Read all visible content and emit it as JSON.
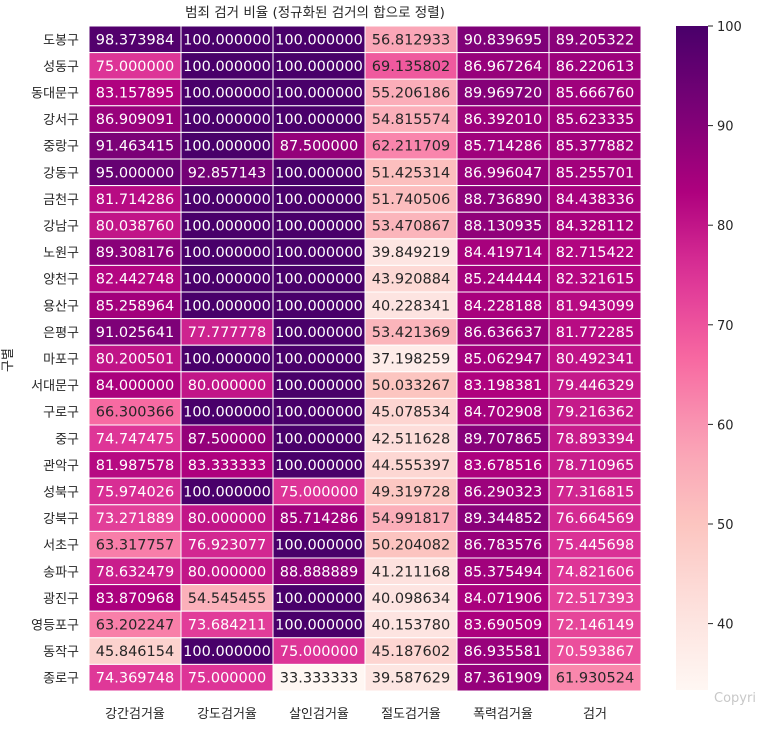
{
  "chart_data": {
    "type": "heatmap",
    "title": "범죄 검거 비율 (정규화된 검거의 합으로 정렬)",
    "ylabel": "구별",
    "xlabel": "",
    "columns": [
      "강간검거율",
      "강도검거율",
      "살인검거율",
      "절도검거율",
      "폭력검거율",
      "검거"
    ],
    "rows": [
      "도봉구",
      "성동구",
      "동대문구",
      "강서구",
      "중랑구",
      "강동구",
      "금천구",
      "강남구",
      "노원구",
      "양천구",
      "용산구",
      "은평구",
      "마포구",
      "서대문구",
      "구로구",
      "중구",
      "관악구",
      "성북구",
      "강북구",
      "서초구",
      "송파구",
      "광진구",
      "영등포구",
      "동작구",
      "종로구"
    ],
    "values": [
      [
        98.373984,
        100.0,
        100.0,
        56.812933,
        90.839695,
        89.205322
      ],
      [
        75.0,
        100.0,
        100.0,
        69.135802,
        86.967264,
        86.220613
      ],
      [
        83.157895,
        100.0,
        100.0,
        55.206186,
        89.96972,
        85.66676
      ],
      [
        86.909091,
        100.0,
        100.0,
        54.815574,
        86.39201,
        85.623335
      ],
      [
        91.463415,
        100.0,
        87.5,
        62.211709,
        85.714286,
        85.377882
      ],
      [
        95.0,
        92.857143,
        100.0,
        51.425314,
        86.996047,
        85.255701
      ],
      [
        81.714286,
        100.0,
        100.0,
        51.740506,
        88.73689,
        84.438336
      ],
      [
        80.03876,
        100.0,
        100.0,
        53.470867,
        88.130935,
        84.328112
      ],
      [
        89.308176,
        100.0,
        100.0,
        39.849219,
        84.419714,
        82.715422
      ],
      [
        82.442748,
        100.0,
        100.0,
        43.920884,
        85.244444,
        82.321615
      ],
      [
        85.258964,
        100.0,
        100.0,
        40.228341,
        84.228188,
        81.943099
      ],
      [
        91.025641,
        77.777778,
        100.0,
        53.421369,
        86.636637,
        81.772285
      ],
      [
        80.200501,
        100.0,
        100.0,
        37.198259,
        85.062947,
        80.492341
      ],
      [
        84.0,
        80.0,
        100.0,
        50.033267,
        83.198381,
        79.446329
      ],
      [
        66.300366,
        100.0,
        100.0,
        45.078534,
        84.702908,
        79.216362
      ],
      [
        74.747475,
        87.5,
        100.0,
        42.511628,
        89.707865,
        78.893394
      ],
      [
        81.987578,
        83.333333,
        100.0,
        44.555397,
        83.678516,
        78.710965
      ],
      [
        75.974026,
        100.0,
        75.0,
        49.319728,
        86.290323,
        77.316815
      ],
      [
        73.271889,
        80.0,
        85.714286,
        54.991817,
        89.344852,
        76.664569
      ],
      [
        63.317757,
        76.923077,
        100.0,
        50.204082,
        86.783576,
        75.445698
      ],
      [
        78.632479,
        80.0,
        88.888889,
        41.211168,
        85.375494,
        74.821606
      ],
      [
        83.870968,
        54.545455,
        100.0,
        40.098634,
        84.071906,
        72.517393
      ],
      [
        63.202247,
        73.684211,
        100.0,
        40.15378,
        83.690509,
        72.146149
      ],
      [
        45.846154,
        100.0,
        75.0,
        45.187602,
        86.935581,
        70.593867
      ],
      [
        74.369748,
        75.0,
        33.333333,
        39.587629,
        87.361909,
        61.930524
      ]
    ],
    "colorbar": {
      "colormap": "RdPu",
      "ticks": [
        40,
        50,
        60,
        70,
        80,
        90,
        100
      ]
    }
  },
  "watermark": "Copyri"
}
